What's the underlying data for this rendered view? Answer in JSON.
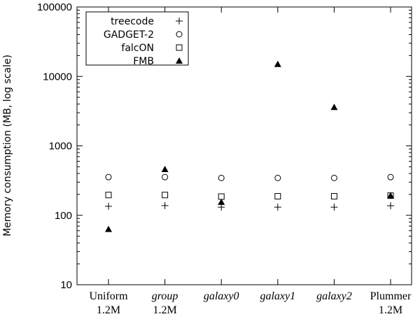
{
  "chart_data": {
    "type": "scatter",
    "title": "",
    "xlabel": "",
    "ylabel": "Memory consumption (MB, log scale)",
    "yscale": "log",
    "ylim": [
      10,
      100000
    ],
    "yticks": [
      "10",
      "100",
      "1000",
      "10000",
      "100000"
    ],
    "categories": [
      {
        "line1": "Uniform",
        "line2": "1.2M",
        "italic": false
      },
      {
        "line1": "group",
        "line2": "1.2M",
        "italic": true
      },
      {
        "line1": "galaxy0",
        "line2": "",
        "italic": true
      },
      {
        "line1": "galaxy1",
        "line2": "",
        "italic": true
      },
      {
        "line1": "galaxy2",
        "line2": "",
        "italic": true
      },
      {
        "line1": "Plummer",
        "line2": "1.2M",
        "italic": false
      }
    ],
    "legend_position": "top-left",
    "grid": false,
    "series": [
      {
        "name": "treecode",
        "marker": "plus",
        "values": [
          135,
          138,
          131,
          131,
          131,
          137
        ]
      },
      {
        "name": "GADGET-2",
        "marker": "circle",
        "values": [
          355,
          355,
          345,
          345,
          345,
          355
        ]
      },
      {
        "name": "falcON",
        "marker": "square",
        "values": [
          196,
          196,
          186,
          188,
          188,
          192
        ]
      },
      {
        "name": "FMB",
        "marker": "triangle",
        "values": [
          63,
          460,
          155,
          15000,
          3600,
          192
        ]
      }
    ]
  }
}
